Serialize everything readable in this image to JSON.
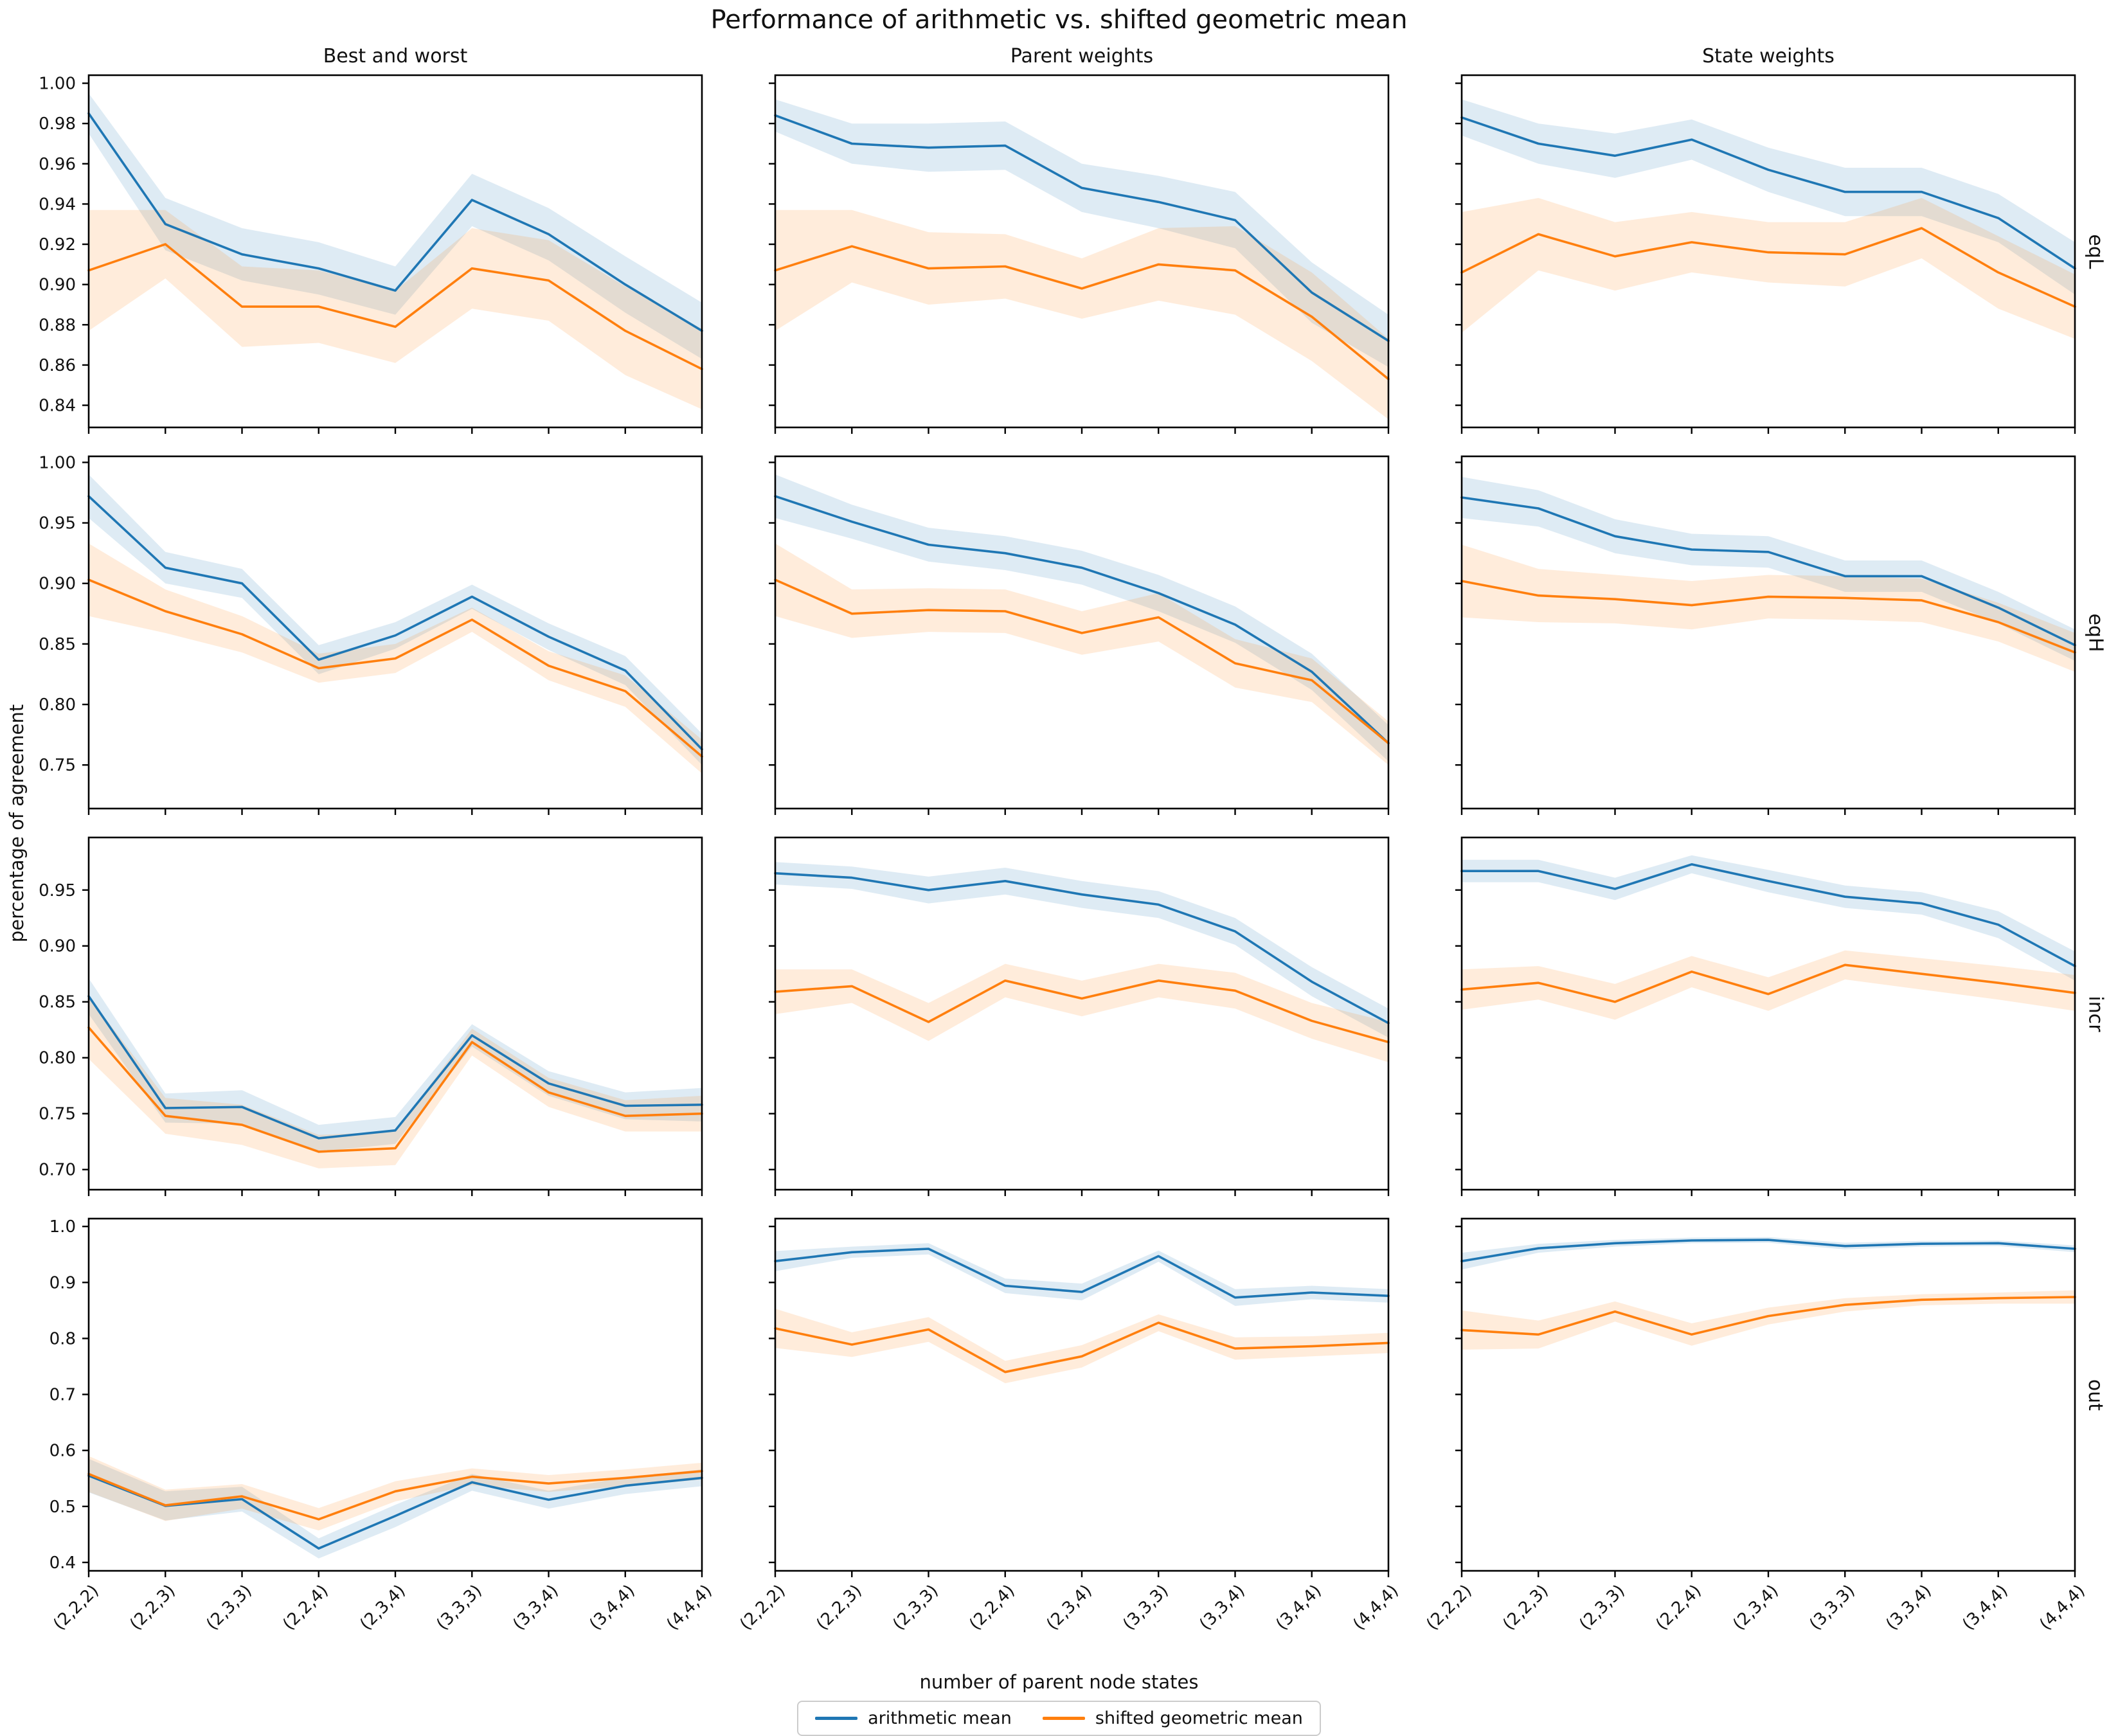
{
  "figure": {
    "title": "Performance of arithmetic vs. shifted geometric mean",
    "xlabel": "number of parent node states",
    "ylabel": "percentage of agreement",
    "legend": [
      {
        "label": "arithmetic mean",
        "color": "#1f77b4"
      },
      {
        "label": "shifted geometric mean",
        "color": "#ff7f0e"
      }
    ]
  },
  "chart_data": {
    "type": "line",
    "title": "Performance of arithmetic vs. shifted geometric mean",
    "xlabel": "number of parent node states",
    "ylabel": "percentage of agreement",
    "legend_position": "bottom-center",
    "grid": false,
    "categories": [
      "(2,2,2)",
      "(2,2,3)",
      "(2,3,3)",
      "(2,2,4)",
      "(2,3,4)",
      "(3,3,3)",
      "(3,3,4)",
      "(3,4,4)",
      "(4,4,4)"
    ],
    "col_titles": [
      "Best and worst",
      "Parent weights",
      "State weights"
    ],
    "row_labels": [
      "eqL",
      "eqH",
      "incr",
      "out"
    ],
    "colors": {
      "arithmetic_mean": "#1f77b4",
      "shifted_geometric_mean": "#ff7f0e"
    },
    "band_opacity": 0.15,
    "rows": [
      {
        "label": "eqL",
        "ylim": [
          0.829,
          1.004
        ],
        "yticks": [
          1.0,
          0.98,
          0.96,
          0.94,
          0.92,
          0.9,
          0.88,
          0.86,
          0.84
        ],
        "ytick_labels": [
          "1.00",
          "0.98",
          "0.96",
          "0.94",
          "0.92",
          "0.90",
          "0.88",
          "0.86",
          "0.84"
        ],
        "plots": [
          {
            "col": "Best and worst",
            "series": [
              {
                "name": "arithmetic mean",
                "values": [
                  0.985,
                  0.93,
                  0.915,
                  0.908,
                  0.897,
                  0.942,
                  0.925,
                  0.9,
                  0.877
                ],
                "err": [
                  0.01,
                  0.013,
                  0.013,
                  0.013,
                  0.012,
                  0.013,
                  0.013,
                  0.014,
                  0.014
                ]
              },
              {
                "name": "shifted geometric mean",
                "values": [
                  0.907,
                  0.92,
                  0.889,
                  0.889,
                  0.879,
                  0.908,
                  0.902,
                  0.877,
                  0.858
                ],
                "err": [
                  0.03,
                  0.017,
                  0.02,
                  0.018,
                  0.018,
                  0.02,
                  0.02,
                  0.022,
                  0.02
                ]
              }
            ]
          },
          {
            "col": "Parent weights",
            "series": [
              {
                "name": "arithmetic mean",
                "values": [
                  0.984,
                  0.97,
                  0.968,
                  0.969,
                  0.948,
                  0.941,
                  0.932,
                  0.896,
                  0.872
                ],
                "err": [
                  0.008,
                  0.01,
                  0.012,
                  0.012,
                  0.012,
                  0.013,
                  0.014,
                  0.015,
                  0.013
                ]
              },
              {
                "name": "shifted geometric mean",
                "values": [
                  0.907,
                  0.919,
                  0.908,
                  0.909,
                  0.898,
                  0.91,
                  0.907,
                  0.884,
                  0.853
                ],
                "err": [
                  0.03,
                  0.018,
                  0.018,
                  0.016,
                  0.015,
                  0.018,
                  0.022,
                  0.022,
                  0.02
                ]
              }
            ]
          },
          {
            "col": "State weights",
            "series": [
              {
                "name": "arithmetic mean",
                "values": [
                  0.983,
                  0.97,
                  0.964,
                  0.972,
                  0.957,
                  0.946,
                  0.946,
                  0.933,
                  0.908
                ],
                "err": [
                  0.009,
                  0.01,
                  0.011,
                  0.01,
                  0.011,
                  0.012,
                  0.012,
                  0.012,
                  0.013
                ]
              },
              {
                "name": "shifted geometric mean",
                "values": [
                  0.906,
                  0.925,
                  0.914,
                  0.921,
                  0.916,
                  0.915,
                  0.928,
                  0.906,
                  0.889
                ],
                "err": [
                  0.03,
                  0.018,
                  0.017,
                  0.015,
                  0.015,
                  0.016,
                  0.015,
                  0.018,
                  0.016
                ]
              }
            ]
          }
        ]
      },
      {
        "label": "eqH",
        "ylim": [
          0.714,
          1.005
        ],
        "yticks": [
          1.0,
          0.95,
          0.9,
          0.85,
          0.8,
          0.75
        ],
        "ytick_labels": [
          "1.00",
          "0.95",
          "0.90",
          "0.85",
          "0.80",
          "0.75"
        ],
        "plots": [
          {
            "col": "Best and worst",
            "series": [
              {
                "name": "arithmetic mean",
                "values": [
                  0.972,
                  0.913,
                  0.9,
                  0.837,
                  0.857,
                  0.889,
                  0.856,
                  0.828,
                  0.763
                ],
                "err": [
                  0.018,
                  0.013,
                  0.012,
                  0.012,
                  0.011,
                  0.01,
                  0.011,
                  0.012,
                  0.013
                ]
              },
              {
                "name": "shifted geometric mean",
                "values": [
                  0.903,
                  0.877,
                  0.858,
                  0.83,
                  0.838,
                  0.87,
                  0.832,
                  0.811,
                  0.757
                ],
                "err": [
                  0.03,
                  0.018,
                  0.015,
                  0.012,
                  0.012,
                  0.01,
                  0.012,
                  0.013,
                  0.014
                ]
              }
            ]
          },
          {
            "col": "Parent weights",
            "series": [
              {
                "name": "arithmetic mean",
                "values": [
                  0.972,
                  0.951,
                  0.932,
                  0.925,
                  0.913,
                  0.892,
                  0.866,
                  0.827,
                  0.768
                ],
                "err": [
                  0.018,
                  0.014,
                  0.014,
                  0.014,
                  0.014,
                  0.015,
                  0.015,
                  0.015,
                  0.015
                ]
              },
              {
                "name": "shifted geometric mean",
                "values": [
                  0.903,
                  0.875,
                  0.878,
                  0.877,
                  0.859,
                  0.872,
                  0.834,
                  0.82,
                  0.768
                ],
                "err": [
                  0.03,
                  0.02,
                  0.018,
                  0.018,
                  0.018,
                  0.02,
                  0.02,
                  0.018,
                  0.018
                ]
              }
            ]
          },
          {
            "col": "State weights",
            "series": [
              {
                "name": "arithmetic mean",
                "values": [
                  0.971,
                  0.962,
                  0.939,
                  0.928,
                  0.926,
                  0.906,
                  0.906,
                  0.88,
                  0.849
                ],
                "err": [
                  0.017,
                  0.015,
                  0.014,
                  0.013,
                  0.013,
                  0.013,
                  0.013,
                  0.013,
                  0.013
                ]
              },
              {
                "name": "shifted geometric mean",
                "values": [
                  0.902,
                  0.89,
                  0.887,
                  0.882,
                  0.889,
                  0.888,
                  0.886,
                  0.868,
                  0.843
                ],
                "err": [
                  0.03,
                  0.022,
                  0.02,
                  0.02,
                  0.018,
                  0.018,
                  0.018,
                  0.016,
                  0.016
                ]
              }
            ]
          }
        ]
      },
      {
        "label": "incr",
        "ylim": [
          0.682,
          0.997
        ],
        "yticks": [
          0.95,
          0.9,
          0.85,
          0.8,
          0.75,
          0.7
        ],
        "ytick_labels": [
          "0.95",
          "0.90",
          "0.85",
          "0.80",
          "0.75",
          "0.70"
        ],
        "plots": [
          {
            "col": "Best and worst",
            "series": [
              {
                "name": "arithmetic mean",
                "values": [
                  0.855,
                  0.755,
                  0.756,
                  0.728,
                  0.735,
                  0.82,
                  0.777,
                  0.757,
                  0.758
                ],
                "err": [
                  0.016,
                  0.013,
                  0.015,
                  0.012,
                  0.012,
                  0.01,
                  0.011,
                  0.012,
                  0.015
                ]
              },
              {
                "name": "shifted geometric mean",
                "values": [
                  0.827,
                  0.748,
                  0.74,
                  0.716,
                  0.719,
                  0.814,
                  0.769,
                  0.748,
                  0.75
                ],
                "err": [
                  0.028,
                  0.016,
                  0.018,
                  0.015,
                  0.015,
                  0.012,
                  0.013,
                  0.014,
                  0.016
                ]
              }
            ]
          },
          {
            "col": "Parent weights",
            "series": [
              {
                "name": "arithmetic mean",
                "values": [
                  0.965,
                  0.961,
                  0.95,
                  0.958,
                  0.946,
                  0.937,
                  0.913,
                  0.868,
                  0.831
                ],
                "err": [
                  0.01,
                  0.01,
                  0.012,
                  0.012,
                  0.012,
                  0.012,
                  0.012,
                  0.013,
                  0.013
                ]
              },
              {
                "name": "shifted geometric mean",
                "values": [
                  0.859,
                  0.864,
                  0.832,
                  0.869,
                  0.853,
                  0.869,
                  0.86,
                  0.833,
                  0.814
                ],
                "err": [
                  0.02,
                  0.015,
                  0.017,
                  0.015,
                  0.016,
                  0.015,
                  0.016,
                  0.016,
                  0.018
                ]
              }
            ]
          },
          {
            "col": "State weights",
            "series": [
              {
                "name": "arithmetic mean",
                "values": [
                  0.967,
                  0.967,
                  0.951,
                  0.973,
                  0.958,
                  0.944,
                  0.938,
                  0.919,
                  0.882
                ],
                "err": [
                  0.01,
                  0.01,
                  0.01,
                  0.008,
                  0.01,
                  0.01,
                  0.01,
                  0.012,
                  0.013
                ]
              },
              {
                "name": "shifted geometric mean",
                "values": [
                  0.861,
                  0.867,
                  0.85,
                  0.877,
                  0.857,
                  0.883,
                  0.875,
                  0.867,
                  0.858
                ],
                "err": [
                  0.018,
                  0.015,
                  0.016,
                  0.014,
                  0.015,
                  0.013,
                  0.014,
                  0.015,
                  0.016
                ]
              }
            ]
          }
        ]
      },
      {
        "label": "out",
        "ylim": [
          0.385,
          1.014
        ],
        "yticks": [
          1.0,
          0.9,
          0.8,
          0.7,
          0.6,
          0.5,
          0.4
        ],
        "ytick_labels": [
          "1.0",
          "0.9",
          "0.8",
          "0.7",
          "0.6",
          "0.5",
          "0.4"
        ],
        "plots": [
          {
            "col": "Best and worst",
            "series": [
              {
                "name": "arithmetic mean",
                "values": [
                  0.555,
                  0.501,
                  0.513,
                  0.425,
                  0.483,
                  0.543,
                  0.512,
                  0.537,
                  0.551
                ],
                "err": [
                  0.03,
                  0.026,
                  0.022,
                  0.018,
                  0.02,
                  0.015,
                  0.016,
                  0.015,
                  0.015
                ]
              },
              {
                "name": "shifted geometric mean",
                "values": [
                  0.558,
                  0.502,
                  0.518,
                  0.477,
                  0.527,
                  0.553,
                  0.541,
                  0.551,
                  0.563
                ],
                "err": [
                  0.032,
                  0.028,
                  0.022,
                  0.02,
                  0.018,
                  0.015,
                  0.015,
                  0.015,
                  0.015
                ]
              }
            ]
          },
          {
            "col": "Parent weights",
            "series": [
              {
                "name": "arithmetic mean",
                "values": [
                  0.938,
                  0.954,
                  0.96,
                  0.894,
                  0.883,
                  0.947,
                  0.873,
                  0.882,
                  0.876
                ],
                "err": [
                  0.018,
                  0.01,
                  0.01,
                  0.013,
                  0.015,
                  0.01,
                  0.015,
                  0.012,
                  0.012
                ]
              },
              {
                "name": "shifted geometric mean",
                "values": [
                  0.818,
                  0.789,
                  0.816,
                  0.74,
                  0.768,
                  0.828,
                  0.782,
                  0.786,
                  0.792
                ],
                "err": [
                  0.035,
                  0.022,
                  0.022,
                  0.02,
                  0.02,
                  0.015,
                  0.02,
                  0.018,
                  0.018
                ]
              }
            ]
          },
          {
            "col": "State weights",
            "series": [
              {
                "name": "arithmetic mean",
                "values": [
                  0.938,
                  0.961,
                  0.97,
                  0.975,
                  0.976,
                  0.965,
                  0.969,
                  0.97,
                  0.96
                ],
                "err": [
                  0.015,
                  0.008,
                  0.006,
                  0.005,
                  0.005,
                  0.006,
                  0.005,
                  0.005,
                  0.006
                ]
              },
              {
                "name": "shifted geometric mean",
                "values": [
                  0.815,
                  0.807,
                  0.848,
                  0.807,
                  0.84,
                  0.86,
                  0.869,
                  0.872,
                  0.874
                ],
                "err": [
                  0.035,
                  0.025,
                  0.018,
                  0.02,
                  0.015,
                  0.012,
                  0.01,
                  0.01,
                  0.012
                ]
              }
            ]
          }
        ]
      }
    ]
  }
}
